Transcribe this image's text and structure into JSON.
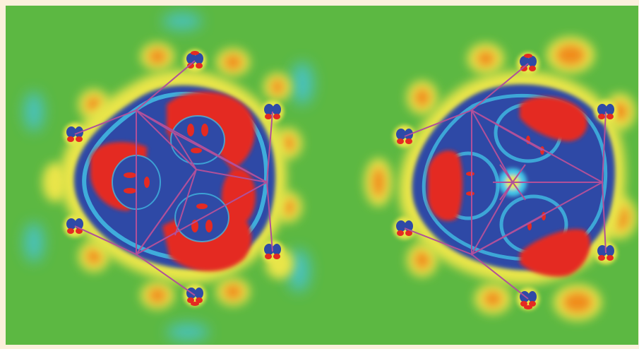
{
  "figure": {
    "kind": "electron density difference map (two panels)",
    "panels": [
      {
        "name": "left-panel"
      },
      {
        "name": "right-panel"
      }
    ],
    "colors": {
      "frame": "#fbf0dc",
      "background": "#5cb842",
      "yellow": "#e9e54a",
      "orange": "#f08c1e",
      "red": "#e42a22",
      "cyan": "#43c6e8",
      "blue": "#2f4aa6",
      "bond": "#b0509a"
    }
  }
}
